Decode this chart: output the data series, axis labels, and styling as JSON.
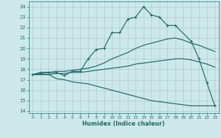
{
  "xlabel": "Humidex (Indice chaleur)",
  "bg_color": "#cce8e8",
  "grid_color": "#aacccc",
  "line_color": "#1a6b6b",
  "xlim": [
    -0.5,
    23.5
  ],
  "ylim": [
    13.8,
    24.5
  ],
  "yticks": [
    14,
    15,
    16,
    17,
    18,
    19,
    20,
    21,
    22,
    23,
    24
  ],
  "xticks": [
    0,
    1,
    2,
    3,
    4,
    5,
    6,
    7,
    8,
    9,
    10,
    11,
    12,
    13,
    14,
    15,
    16,
    17,
    18,
    19,
    20,
    21,
    22,
    23
  ],
  "line1_x": [
    0,
    1,
    2,
    3,
    4,
    5,
    6,
    7,
    8,
    9,
    10,
    11,
    12,
    13,
    14,
    15,
    16,
    17,
    18,
    20,
    21,
    22,
    23
  ],
  "line1_y": [
    17.5,
    17.7,
    17.7,
    17.7,
    17.4,
    17.8,
    17.8,
    19.0,
    19.9,
    20.0,
    21.5,
    21.5,
    22.8,
    23.0,
    24.0,
    23.2,
    23.0,
    22.2,
    22.2,
    20.7,
    19.0,
    16.7,
    14.5
  ],
  "line2_x": [
    0,
    1,
    2,
    3,
    4,
    5,
    6,
    7,
    8,
    9,
    10,
    11,
    12,
    13,
    14,
    15,
    16,
    17,
    18,
    19,
    20,
    21,
    22,
    23
  ],
  "line2_y": [
    17.5,
    17.6,
    17.7,
    17.8,
    17.8,
    17.9,
    18.0,
    18.1,
    18.3,
    18.6,
    19.0,
    19.3,
    19.6,
    20.0,
    20.3,
    20.5,
    20.7,
    20.9,
    21.0,
    20.8,
    20.5,
    20.3,
    20.0,
    19.7
  ],
  "line3_x": [
    0,
    1,
    2,
    3,
    4,
    5,
    6,
    7,
    8,
    9,
    10,
    11,
    12,
    13,
    14,
    15,
    16,
    17,
    18,
    19,
    20,
    21,
    22,
    23
  ],
  "line3_y": [
    17.5,
    17.5,
    17.5,
    17.6,
    17.6,
    17.7,
    17.7,
    17.8,
    17.9,
    18.0,
    18.1,
    18.2,
    18.3,
    18.5,
    18.6,
    18.7,
    18.8,
    18.9,
    19.0,
    19.0,
    18.9,
    18.7,
    18.5,
    18.2
  ],
  "line4_x": [
    0,
    1,
    2,
    3,
    4,
    5,
    6,
    7,
    8,
    9,
    10,
    11,
    12,
    13,
    14,
    15,
    16,
    17,
    18,
    19,
    20,
    21,
    22,
    23
  ],
  "line4_y": [
    17.5,
    17.5,
    17.5,
    17.1,
    17.0,
    16.8,
    16.7,
    16.6,
    16.4,
    16.2,
    16.0,
    15.8,
    15.6,
    15.4,
    15.2,
    15.0,
    14.9,
    14.8,
    14.7,
    14.6,
    14.5,
    14.5,
    14.5,
    14.5
  ]
}
